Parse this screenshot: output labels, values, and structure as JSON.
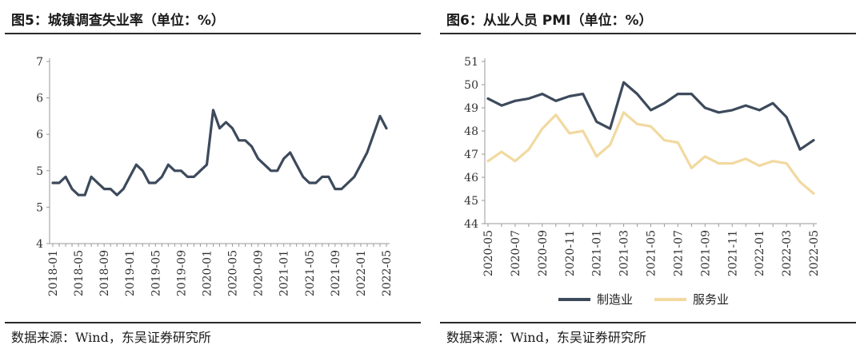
{
  "fig5": {
    "title": "图5：城镇调查失业率（单位：%）",
    "source": "数据来源：Wind，东吴证券研究所"
  },
  "fig6": {
    "title": "图6：从业人员 PMI（单位：%）",
    "source": "数据来源：Wind，东吴证券研究所"
  },
  "chart_data": [
    {
      "type": "line",
      "title": "图5：城镇调查失业率（单位：%）",
      "y_tick_labels": [
        "4",
        "5",
        "5",
        "6",
        "6",
        "7"
      ],
      "ylim": [
        4,
        7
      ],
      "x_tick_labels": [
        "2018-01",
        "2018-05",
        "2018-09",
        "2019-01",
        "2019-05",
        "2019-09",
        "2020-01",
        "2020-05",
        "2020-09",
        "2021-01",
        "2021-05",
        "2021-09",
        "2022-01",
        "2022-05"
      ],
      "x": [
        "2018-01",
        "2018-02",
        "2018-03",
        "2018-04",
        "2018-05",
        "2018-06",
        "2018-07",
        "2018-08",
        "2018-09",
        "2018-10",
        "2018-11",
        "2018-12",
        "2019-01",
        "2019-02",
        "2019-03",
        "2019-04",
        "2019-05",
        "2019-06",
        "2019-07",
        "2019-08",
        "2019-09",
        "2019-10",
        "2019-11",
        "2019-12",
        "2020-01",
        "2020-02",
        "2020-03",
        "2020-04",
        "2020-05",
        "2020-06",
        "2020-07",
        "2020-08",
        "2020-09",
        "2020-10",
        "2020-11",
        "2020-12",
        "2021-01",
        "2021-02",
        "2021-03",
        "2021-04",
        "2021-05",
        "2021-06",
        "2021-07",
        "2021-08",
        "2021-09",
        "2021-10",
        "2021-11",
        "2021-12",
        "2022-01",
        "2022-02",
        "2022-03",
        "2022-04",
        "2022-05"
      ],
      "series": [
        {
          "color": "#3d4a5c",
          "values": [
            5.0,
            5.0,
            5.1,
            4.9,
            4.8,
            4.8,
            5.1,
            5.0,
            4.9,
            4.9,
            4.8,
            4.9,
            5.1,
            5.3,
            5.2,
            5.0,
            5.0,
            5.1,
            5.3,
            5.2,
            5.2,
            5.1,
            5.1,
            5.2,
            5.3,
            6.2,
            5.9,
            6.0,
            5.9,
            5.7,
            5.7,
            5.6,
            5.4,
            5.3,
            5.2,
            5.2,
            5.4,
            5.5,
            5.3,
            5.1,
            5.0,
            5.0,
            5.1,
            5.1,
            4.9,
            4.9,
            5.0,
            5.1,
            5.3,
            5.5,
            5.8,
            6.1,
            5.9
          ]
        }
      ],
      "grid": false,
      "legend": false
    },
    {
      "type": "line",
      "title": "图6：从业人员 PMI（单位：%）",
      "ylim": [
        44,
        51
      ],
      "y_ticks": [
        44,
        45,
        46,
        47,
        48,
        49,
        50,
        51
      ],
      "x_tick_labels": [
        "2020-05",
        "2020-07",
        "2020-09",
        "2020-11",
        "2021-01",
        "2021-03",
        "2021-05",
        "2021-07",
        "2021-09",
        "2021-11",
        "2022-01",
        "2022-03",
        "2022-05"
      ],
      "x": [
        "2020-05",
        "2020-06",
        "2020-07",
        "2020-08",
        "2020-09",
        "2020-10",
        "2020-11",
        "2020-12",
        "2021-01",
        "2021-02",
        "2021-03",
        "2021-04",
        "2021-05",
        "2021-06",
        "2021-07",
        "2021-08",
        "2021-09",
        "2021-10",
        "2021-11",
        "2021-12",
        "2022-01",
        "2022-02",
        "2022-03",
        "2022-04",
        "2022-05"
      ],
      "series": [
        {
          "name": "制造业",
          "color": "#3d4a5c",
          "values": [
            49.4,
            49.1,
            49.3,
            49.4,
            49.6,
            49.3,
            49.5,
            49.6,
            48.4,
            48.1,
            50.1,
            49.6,
            48.9,
            49.2,
            49.6,
            49.6,
            49.0,
            48.8,
            48.9,
            49.1,
            48.9,
            49.2,
            48.6,
            47.2,
            47.6
          ]
        },
        {
          "name": "服务业",
          "color": "#f1d9a0",
          "values": [
            46.7,
            47.1,
            46.7,
            47.2,
            48.1,
            48.7,
            47.9,
            48.0,
            46.9,
            47.4,
            48.8,
            48.3,
            48.2,
            47.6,
            47.5,
            46.4,
            46.9,
            46.6,
            46.6,
            46.8,
            46.5,
            46.7,
            46.6,
            45.8,
            45.3
          ]
        }
      ],
      "grid": false,
      "legend": "bottom-center"
    }
  ]
}
